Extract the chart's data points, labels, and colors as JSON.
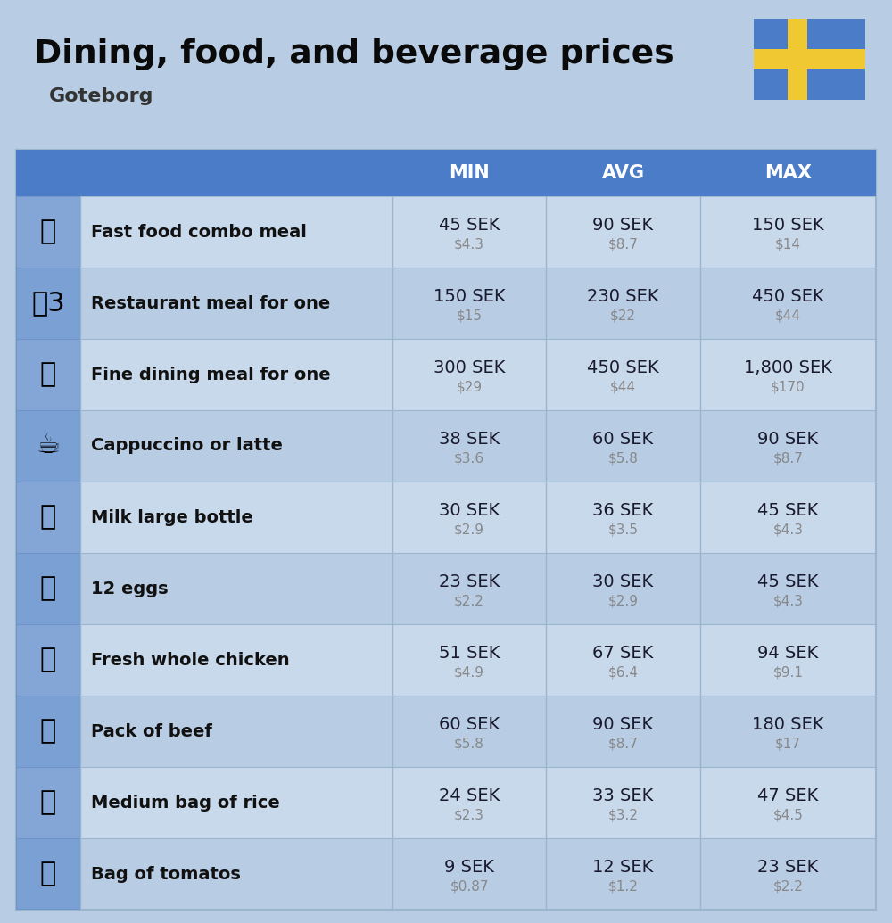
{
  "title": "Dining, food, and beverage prices",
  "subtitle": "Goteborg",
  "bg_color": "#b8cce4",
  "header_bg": "#4a7cc7",
  "header_text_color": "#ffffff",
  "row_bg_light": "#c9d9ec",
  "row_bg_dark": "#b8cce4",
  "col_headers": [
    "MIN",
    "AVG",
    "MAX"
  ],
  "rows": [
    {
      "label": "Fast food combo meal",
      "min_sek": "45 SEK",
      "min_usd": "$4.3",
      "avg_sek": "90 SEK",
      "avg_usd": "$8.7",
      "max_sek": "150 SEK",
      "max_usd": "$14"
    },
    {
      "label": "Restaurant meal for one",
      "min_sek": "150 SEK",
      "min_usd": "$15",
      "avg_sek": "230 SEK",
      "avg_usd": "$22",
      "max_sek": "450 SEK",
      "max_usd": "$44"
    },
    {
      "label": "Fine dining meal for one",
      "min_sek": "300 SEK",
      "min_usd": "$29",
      "avg_sek": "450 SEK",
      "avg_usd": "$44",
      "max_sek": "1,800 SEK",
      "max_usd": "$170"
    },
    {
      "label": "Cappuccino or latte",
      "min_sek": "38 SEK",
      "min_usd": "$3.6",
      "avg_sek": "60 SEK",
      "avg_usd": "$5.8",
      "max_sek": "90 SEK",
      "max_usd": "$8.7"
    },
    {
      "label": "Milk large bottle",
      "min_sek": "30 SEK",
      "min_usd": "$2.9",
      "avg_sek": "36 SEK",
      "avg_usd": "$3.5",
      "max_sek": "45 SEK",
      "max_usd": "$4.3"
    },
    {
      "label": "12 eggs",
      "min_sek": "23 SEK",
      "min_usd": "$2.2",
      "avg_sek": "30 SEK",
      "avg_usd": "$2.9",
      "max_sek": "45 SEK",
      "max_usd": "$4.3"
    },
    {
      "label": "Fresh whole chicken",
      "min_sek": "51 SEK",
      "min_usd": "$4.9",
      "avg_sek": "67 SEK",
      "avg_usd": "$6.4",
      "max_sek": "94 SEK",
      "max_usd": "$9.1"
    },
    {
      "label": "Pack of beef",
      "min_sek": "60 SEK",
      "min_usd": "$5.8",
      "avg_sek": "90 SEK",
      "avg_usd": "$8.7",
      "max_sek": "180 SEK",
      "max_usd": "$17"
    },
    {
      "label": "Medium bag of rice",
      "min_sek": "24 SEK",
      "min_usd": "$2.3",
      "avg_sek": "33 SEK",
      "avg_usd": "$3.2",
      "max_sek": "47 SEK",
      "max_usd": "$4.5"
    },
    {
      "label": "Bag of tomatos",
      "min_sek": "9 SEK",
      "min_usd": "$0.87",
      "avg_sek": "12 SEK",
      "avg_usd": "$1.2",
      "max_sek": "23 SEK",
      "max_usd": "$2.2"
    }
  ],
  "icon_texts": [
    "🍔",
    "🌷3",
    "🍽",
    "☕",
    "🥛",
    "🥚",
    "🐔",
    "🥩",
    "🍚",
    "🍅"
  ],
  "flag_blue": "#4a7cc7",
  "flag_yellow": "#f0c832",
  "divider_color": "#9ab5cc",
  "sek_color": "#1a1a2e",
  "usd_color": "#888888",
  "label_color": "#111111"
}
